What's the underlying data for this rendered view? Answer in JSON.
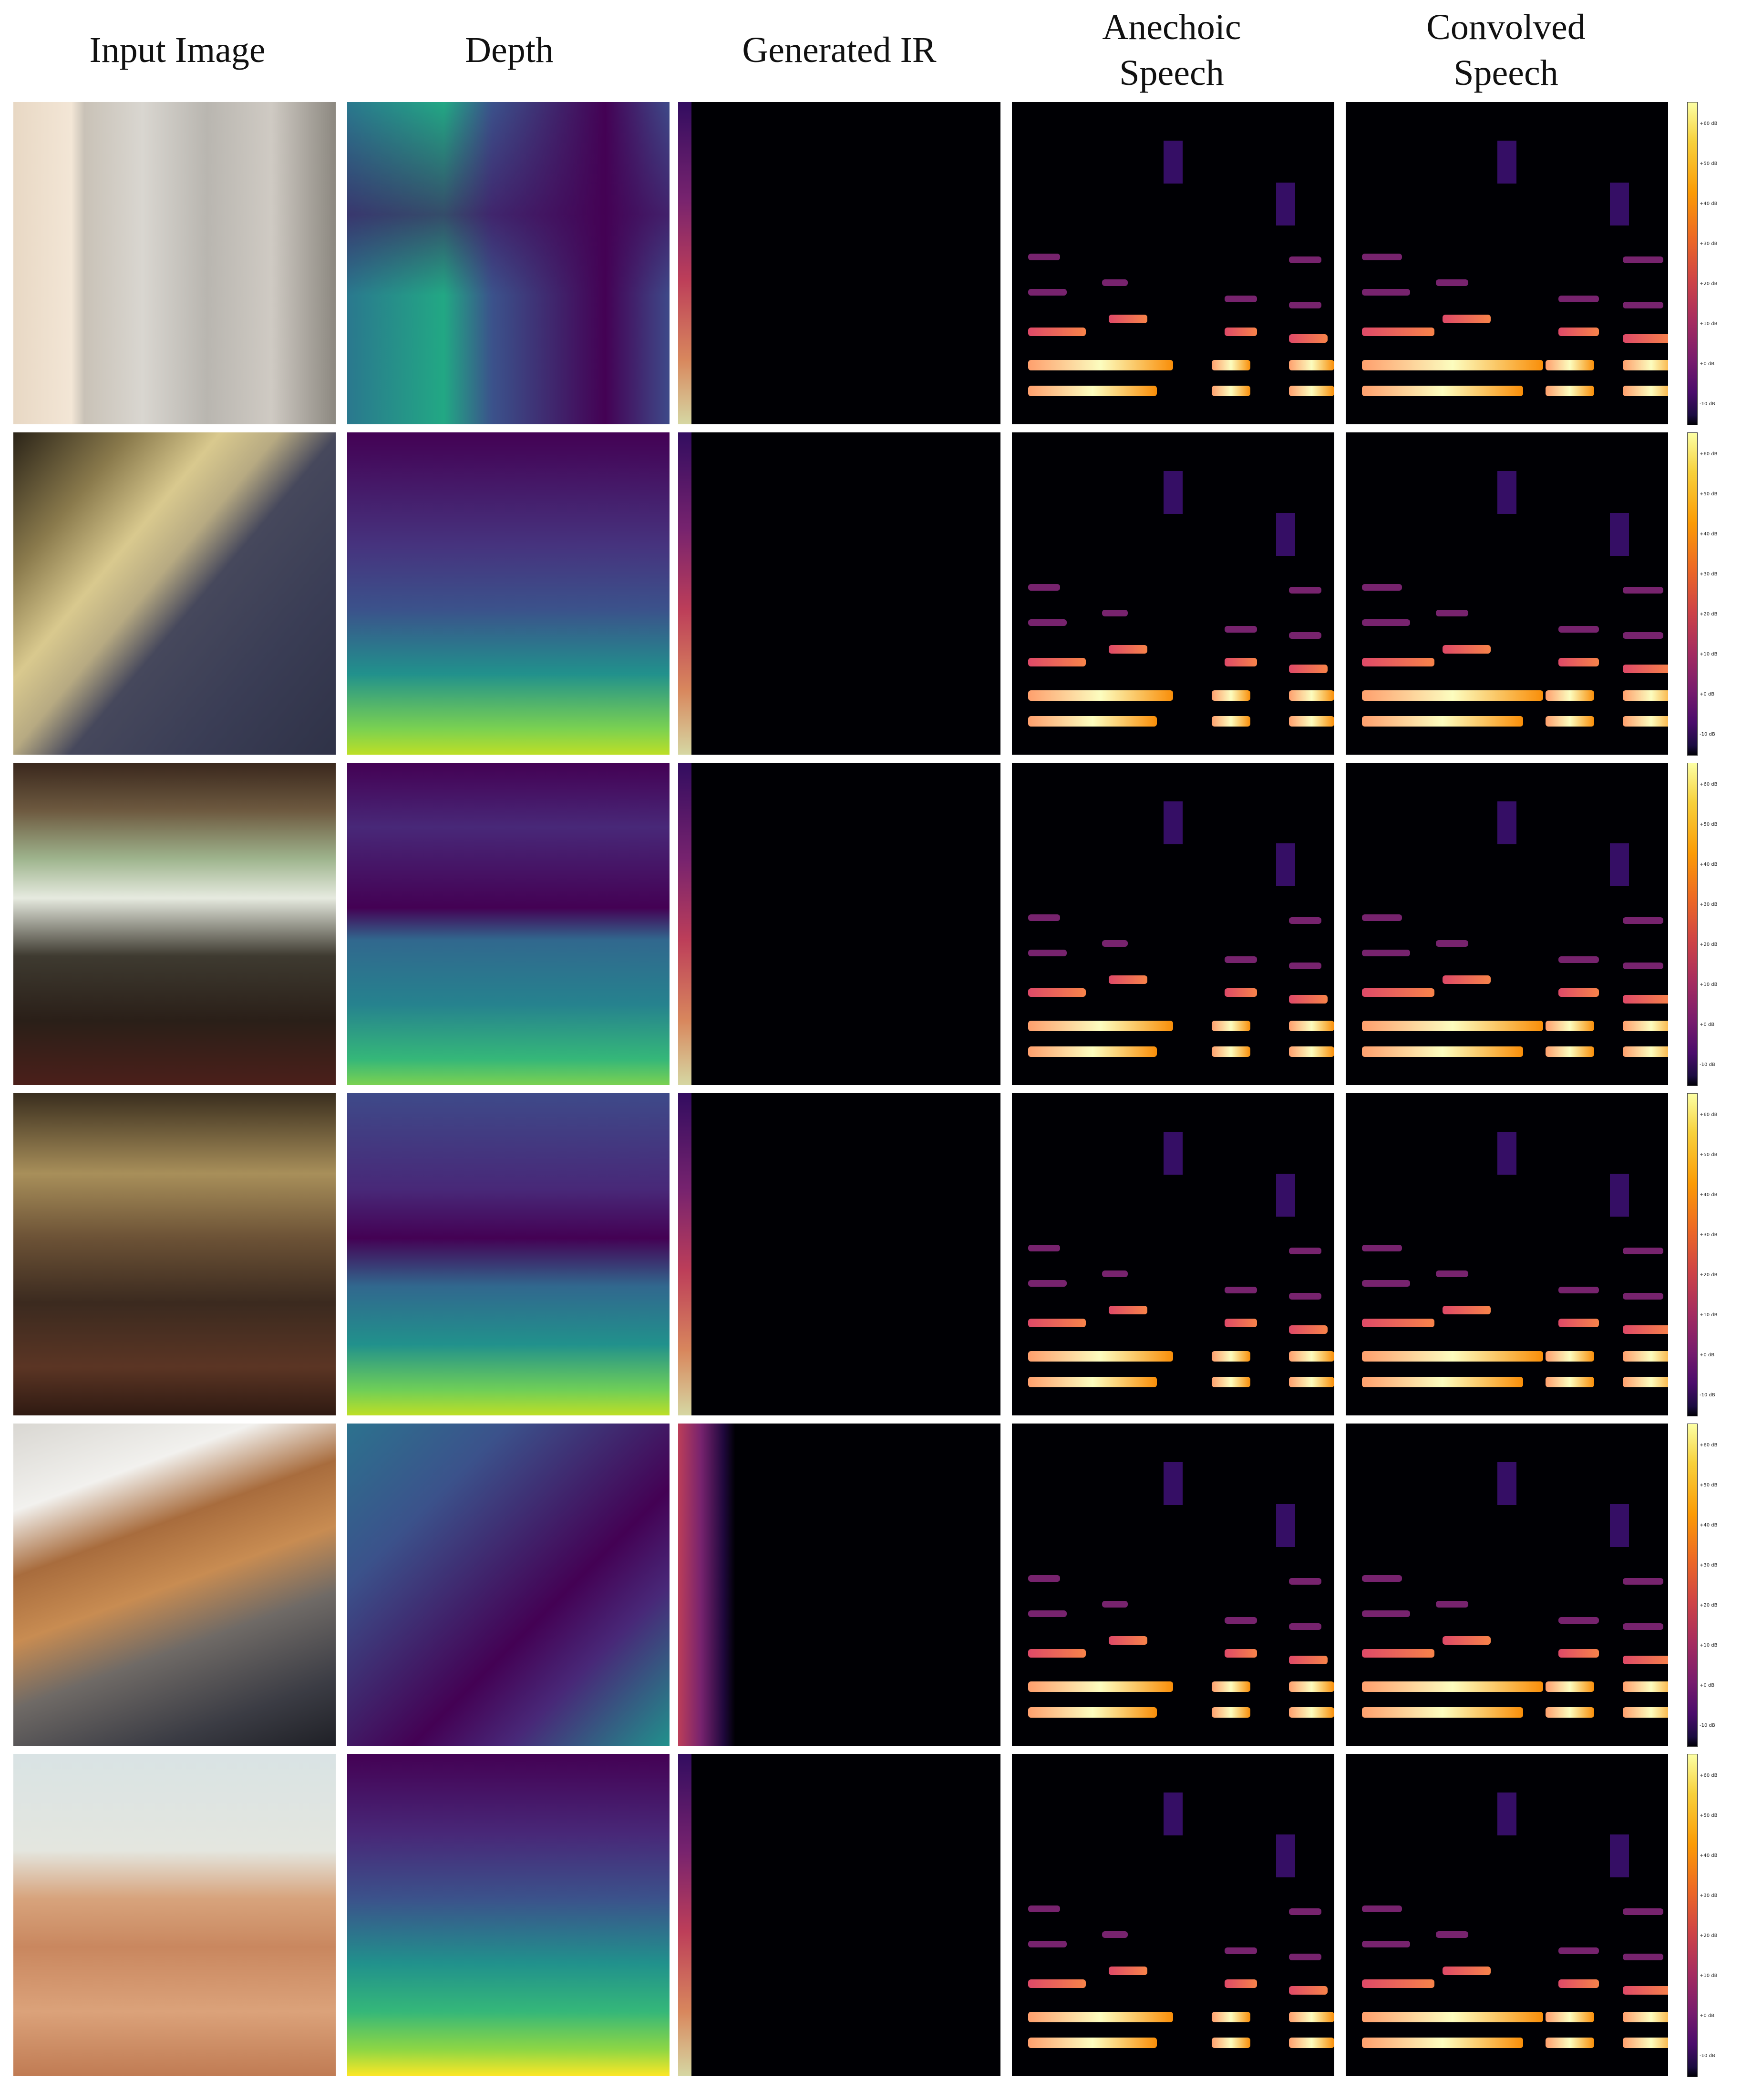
{
  "columns": {
    "input": "Input Image",
    "depth": "Depth",
    "ir": "Generated IR",
    "anechoic": "Anechoic Speech",
    "convolved": "Convolved Speech"
  },
  "colorbar": {
    "colormap": "inferno",
    "ticks": [
      "+60 dB",
      "+50 dB",
      "+40 dB",
      "+30 dB",
      "+20 dB",
      "+10 dB",
      "+0 dB",
      "-10 dB"
    ]
  },
  "rows": 6
}
